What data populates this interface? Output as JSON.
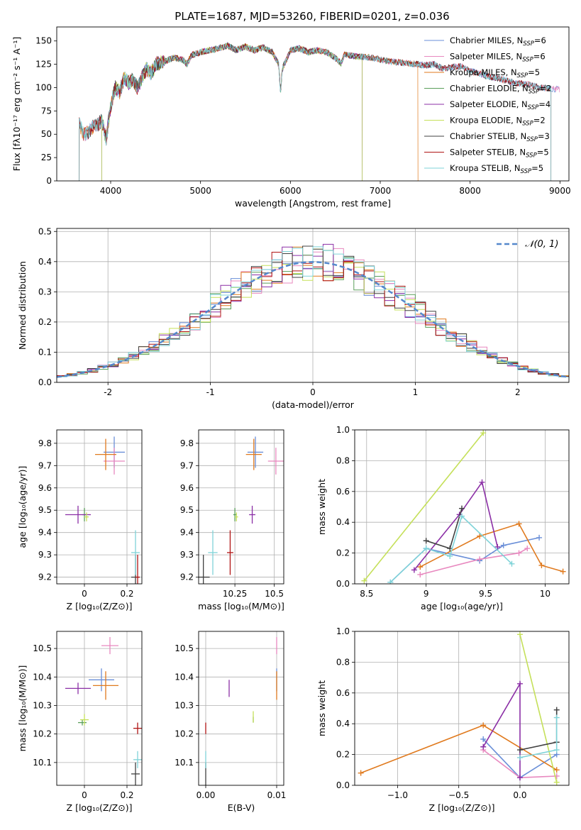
{
  "figure": {
    "title": "PLATE=1687, MJD=53260, FIBERID=0201, z=0.036"
  },
  "series_styles": [
    {
      "name": "Chabrier MILES",
      "nssp": "6",
      "color": "#6a8fd8"
    },
    {
      "name": "Salpeter MILES",
      "nssp": "6",
      "color": "#e888bf"
    },
    {
      "name": "Kroupa MILES",
      "nssp": "5",
      "color": "#e07a1e"
    },
    {
      "name": "Chabrier ELODIE",
      "nssp": "2",
      "color": "#5a9e5a"
    },
    {
      "name": "Salpeter ELODIE",
      "nssp": "4",
      "color": "#8b2fa6"
    },
    {
      "name": "Kroupa ELODIE",
      "nssp": "2",
      "color": "#c5e05a"
    },
    {
      "name": "Chabrier STELIB",
      "nssp": "3",
      "color": "#404040"
    },
    {
      "name": "Salpeter STELIB",
      "nssp": "5",
      "color": "#b01414"
    },
    {
      "name": "Kroupa STELIB",
      "nssp": "5",
      "color": "#7fd3d8"
    }
  ],
  "chart_data": [
    {
      "id": "spectrum",
      "type": "line",
      "xlabel": "wavelength [Angstrom, rest frame]",
      "ylabel": "Flux [fλ10⁻¹⁷ erg cm⁻² s⁻¹ A⁻¹]",
      "xlim": [
        3400,
        9100
      ],
      "ylim": [
        0,
        165
      ],
      "xticks": [
        4000,
        5000,
        6000,
        7000,
        8000,
        9000
      ],
      "yticks": [
        0,
        25,
        50,
        75,
        100,
        125,
        150
      ],
      "grid": false,
      "legend": "top-right",
      "spectrum_x": [
        3650,
        3680,
        3700,
        3750,
        3800,
        3850,
        3900,
        3950,
        4000,
        4050,
        4100,
        4150,
        4200,
        4250,
        4300,
        4350,
        4400,
        4450,
        4500,
        4600,
        4700,
        4800,
        4850,
        4900,
        5000,
        5100,
        5200,
        5300,
        5400,
        5500,
        5600,
        5700,
        5800,
        5870,
        5890,
        5910,
        6000,
        6100,
        6200,
        6300,
        6400,
        6500,
        6563,
        6600,
        6700,
        6800,
        6900,
        7000,
        7100,
        7200,
        7300,
        7400,
        7500,
        7600,
        7700,
        7800,
        7900,
        8000,
        8100,
        8200,
        8300,
        8400,
        8500,
        8600,
        8700,
        8800,
        8900,
        9000
      ],
      "spectrum_y": [
        62,
        55,
        50,
        52,
        58,
        60,
        65,
        45,
        80,
        100,
        95,
        110,
        105,
        108,
        100,
        112,
        120,
        115,
        125,
        128,
        132,
        130,
        125,
        135,
        138,
        140,
        142,
        145,
        140,
        144,
        140,
        143,
        138,
        125,
        95,
        120,
        140,
        142,
        138,
        140,
        138,
        132,
        126,
        135,
        134,
        133,
        132,
        130,
        128,
        127,
        126,
        125,
        124,
        125,
        120,
        122,
        123,
        118,
        115,
        112,
        110,
        108,
        105,
        104,
        102,
        100,
        99,
        98
      ],
      "cutoffs": [
        {
          "series": "Chabrier MILES",
          "x": [
            3650,
            9000
          ]
        },
        {
          "series": "Salpeter MILES",
          "x": [
            3650,
            9000
          ]
        },
        {
          "series": "Kroupa MILES",
          "x": [
            3650,
            7420
          ]
        },
        {
          "series": "Chabrier ELODIE",
          "x": [
            3900,
            6800
          ]
        },
        {
          "series": "Salpeter ELODIE",
          "x": [
            3900,
            6800
          ]
        },
        {
          "series": "Kroupa ELODIE",
          "x": [
            3900,
            6800
          ]
        },
        {
          "series": "Chabrier STELIB",
          "x": [
            3650,
            8900
          ]
        },
        {
          "series": "Salpeter STELIB",
          "x": [
            3650,
            8900
          ]
        },
        {
          "series": "Kroupa STELIB",
          "x": [
            3650,
            8900
          ]
        }
      ]
    },
    {
      "id": "residuals",
      "type": "area",
      "xlabel": "(data-model)/error",
      "ylabel": "Normed distribution",
      "xlim": [
        -2.5,
        2.5
      ],
      "ylim": [
        0,
        0.51
      ],
      "xticks": [
        -2,
        -1,
        0,
        1,
        2
      ],
      "yticks": [
        0.0,
        0.1,
        0.2,
        0.3,
        0.4,
        0.5
      ],
      "grid": true,
      "legend": "top-right",
      "normal_label": "𝒩(0, 1)",
      "normal_color": "#5588cc"
    },
    {
      "id": "age-vs-Z",
      "type": "scatter",
      "xlabel": "Z [log₁₀(Z/Z⊙)]",
      "ylabel": "age  [log₁₀(age/yr)]",
      "xlim": [
        -0.13,
        0.27
      ],
      "ylim": [
        9.17,
        9.86
      ],
      "xticks": [
        0.0,
        0.2
      ],
      "yticks": [
        9.2,
        9.3,
        9.4,
        9.5,
        9.6,
        9.7,
        9.8
      ],
      "grid": true,
      "points": [
        {
          "series": "Chabrier MILES",
          "x": 0.14,
          "y": 9.76,
          "xerr": 0.05,
          "yerr": 0.07
        },
        {
          "series": "Salpeter MILES",
          "x": 0.14,
          "y": 9.72,
          "xerr": 0.05,
          "yerr": 0.06
        },
        {
          "series": "Kroupa MILES",
          "x": 0.1,
          "y": 9.75,
          "xerr": 0.05,
          "yerr": 0.07
        },
        {
          "series": "Chabrier ELODIE",
          "x": 0.0,
          "y": 9.48,
          "xerr": 0.01,
          "yerr": 0.03
        },
        {
          "series": "Salpeter ELODIE",
          "x": -0.03,
          "y": 9.48,
          "xerr": 0.06,
          "yerr": 0.04
        },
        {
          "series": "Kroupa ELODIE",
          "x": 0.01,
          "y": 9.47,
          "xerr": 0.01,
          "yerr": 0.02
        },
        {
          "series": "Chabrier STELIB",
          "x": 0.24,
          "y": 9.2,
          "xerr": 0.02,
          "yerr": 0.1
        },
        {
          "series": "Salpeter STELIB",
          "x": 0.25,
          "y": 9.2,
          "xerr": 0.01,
          "yerr": 0.1
        },
        {
          "series": "Kroupa STELIB",
          "x": 0.24,
          "y": 9.31,
          "xerr": 0.02,
          "yerr": 0.1
        }
      ]
    },
    {
      "id": "age-vs-mass",
      "type": "scatter",
      "xlabel": "mass [log₁₀(M/M⊙)]",
      "ylabel": "",
      "xlim": [
        10.02,
        10.56
      ],
      "ylim": [
        9.17,
        9.86
      ],
      "xticks": [
        10.25,
        10.5
      ],
      "yticks": [
        9.2,
        9.3,
        9.4,
        9.5,
        9.6,
        9.7,
        9.8
      ],
      "grid": true,
      "points": [
        {
          "series": "Chabrier MILES",
          "x": 10.38,
          "y": 9.76,
          "xerr": 0.05,
          "yerr": 0.07
        },
        {
          "series": "Salpeter MILES",
          "x": 10.51,
          "y": 9.72,
          "xerr": 0.05,
          "yerr": 0.06
        },
        {
          "series": "Kroupa MILES",
          "x": 10.37,
          "y": 9.75,
          "xerr": 0.05,
          "yerr": 0.07
        },
        {
          "series": "Chabrier ELODIE",
          "x": 10.25,
          "y": 9.48,
          "xerr": 0.01,
          "yerr": 0.03
        },
        {
          "series": "Salpeter ELODIE",
          "x": 10.36,
          "y": 9.48,
          "xerr": 0.02,
          "yerr": 0.04
        },
        {
          "series": "Kroupa ELODIE",
          "x": 10.26,
          "y": 9.47,
          "xerr": 0.01,
          "yerr": 0.02
        },
        {
          "series": "Chabrier STELIB",
          "x": 10.05,
          "y": 9.2,
          "xerr": 0.04,
          "yerr": 0.1
        },
        {
          "series": "Salpeter STELIB",
          "x": 10.22,
          "y": 9.31,
          "xerr": 0.02,
          "yerr": 0.1
        },
        {
          "series": "Kroupa STELIB",
          "x": 10.11,
          "y": 9.31,
          "xerr": 0.03,
          "yerr": 0.1
        }
      ]
    },
    {
      "id": "weight-vs-age",
      "type": "line",
      "xlabel": "age  [log₁₀(age/yr)]",
      "ylabel": "mass weight",
      "xlim": [
        8.4,
        10.2
      ],
      "ylim": [
        0,
        1.0
      ],
      "xticks": [
        8.5,
        9.0,
        9.5,
        10.0
      ],
      "yticks": [
        0.0,
        0.2,
        0.4,
        0.6,
        0.8,
        1.0
      ],
      "grid": true,
      "series": [
        {
          "name": "Chabrier MILES",
          "x": [
            8.7,
            9.0,
            9.45,
            9.65,
            9.95
          ],
          "y": [
            0.01,
            0.23,
            0.15,
            0.25,
            0.3
          ]
        },
        {
          "name": "Salpeter MILES",
          "x": [
            8.95,
            9.45,
            9.78,
            9.85
          ],
          "y": [
            0.06,
            0.16,
            0.2,
            0.23
          ]
        },
        {
          "name": "Kroupa MILES",
          "x": [
            8.95,
            9.45,
            9.78,
            9.97,
            10.15
          ],
          "y": [
            0.11,
            0.31,
            0.39,
            0.12,
            0.08
          ]
        },
        {
          "name": "Salpeter ELODIE",
          "x": [
            8.9,
            9.28,
            9.47,
            9.6
          ],
          "y": [
            0.09,
            0.45,
            0.66,
            0.24
          ]
        },
        {
          "name": "Kroupa ELODIE",
          "x": [
            8.48,
            9.48
          ],
          "y": [
            0.02,
            0.98
          ]
        },
        {
          "name": "Chabrier STELIB",
          "x": [
            9.0,
            9.2,
            9.3
          ],
          "y": [
            0.28,
            0.23,
            0.49
          ]
        },
        {
          "name": "Kroupa STELIB",
          "x": [
            8.7,
            9.0,
            9.2,
            9.3,
            9.72
          ],
          "y": [
            0.01,
            0.23,
            0.18,
            0.44,
            0.13
          ]
        }
      ]
    },
    {
      "id": "mass-vs-Z",
      "type": "scatter",
      "xlabel": "Z [log₁₀(Z/Z⊙)]",
      "ylabel": "mass [log₁₀(M/M⊙)]",
      "xlim": [
        -0.13,
        0.27
      ],
      "ylim": [
        10.02,
        10.56
      ],
      "xticks": [
        0.0,
        0.2
      ],
      "yticks": [
        10.1,
        10.2,
        10.3,
        10.4,
        10.5
      ],
      "grid": true,
      "points": [
        {
          "series": "Chabrier MILES",
          "x": 0.08,
          "y": 10.39,
          "xerr": 0.06,
          "yerr": 0.04
        },
        {
          "series": "Salpeter MILES",
          "x": 0.12,
          "y": 10.51,
          "xerr": 0.04,
          "yerr": 0.03
        },
        {
          "series": "Kroupa MILES",
          "x": 0.1,
          "y": 10.37,
          "xerr": 0.06,
          "yerr": 0.05
        },
        {
          "series": "Chabrier ELODIE",
          "x": -0.01,
          "y": 10.24,
          "xerr": 0.02,
          "yerr": 0.01
        },
        {
          "series": "Salpeter ELODIE",
          "x": -0.03,
          "y": 10.36,
          "xerr": 0.06,
          "yerr": 0.02
        },
        {
          "series": "Kroupa ELODIE",
          "x": 0.0,
          "y": 10.25,
          "xerr": 0.02,
          "yerr": 0.02
        },
        {
          "series": "Chabrier STELIB",
          "x": 0.24,
          "y": 10.06,
          "xerr": 0.02,
          "yerr": 0.04
        },
        {
          "series": "Salpeter STELIB",
          "x": 0.25,
          "y": 10.22,
          "xerr": 0.02,
          "yerr": 0.02
        },
        {
          "series": "Kroupa STELIB",
          "x": 0.25,
          "y": 10.11,
          "xerr": 0.02,
          "yerr": 0.03
        }
      ]
    },
    {
      "id": "mass-vs-ebv",
      "type": "scatter",
      "xlabel": "E(B-V)",
      "ylabel": "",
      "xlim": [
        -0.001,
        0.011
      ],
      "ylim": [
        10.02,
        10.56
      ],
      "xticks": [
        0.0,
        0.01
      ],
      "xticklabels": [
        "0.00",
        "0.01"
      ],
      "yticks": [
        10.1,
        10.2,
        10.3,
        10.4,
        10.5
      ],
      "grid": true,
      "points": [
        {
          "series": "Chabrier MILES",
          "x": 0.01,
          "y": 10.39,
          "xerr": 0.0,
          "yerr": 0.04
        },
        {
          "series": "Salpeter MILES",
          "x": 0.01,
          "y": 10.51,
          "xerr": 0.0,
          "yerr": 0.03
        },
        {
          "series": "Kroupa MILES",
          "x": 0.01,
          "y": 10.37,
          "xerr": 0.0,
          "yerr": 0.05
        },
        {
          "series": "Chabrier ELODIE",
          "x": 0.0067,
          "y": 10.25,
          "xerr": 0.0,
          "yerr": 0.01
        },
        {
          "series": "Salpeter ELODIE",
          "x": 0.0033,
          "y": 10.36,
          "xerr": 0.0,
          "yerr": 0.03
        },
        {
          "series": "Kroupa ELODIE",
          "x": 0.0067,
          "y": 10.26,
          "xerr": 0.0,
          "yerr": 0.02
        },
        {
          "series": "Chabrier STELIB",
          "x": 0.0,
          "y": 10.06,
          "xerr": 0.0,
          "yerr": 0.04
        },
        {
          "series": "Salpeter STELIB",
          "x": 0.0,
          "y": 10.22,
          "xerr": 0.0,
          "yerr": 0.02
        },
        {
          "series": "Kroupa STELIB",
          "x": 0.0,
          "y": 10.11,
          "xerr": 0.0,
          "yerr": 0.03
        }
      ]
    },
    {
      "id": "weight-vs-Z",
      "type": "line",
      "xlabel": "Z [log₁₀(Z/Z⊙)]",
      "ylabel": "mass weight",
      "xlim": [
        -1.35,
        0.4
      ],
      "ylim": [
        0,
        1.0
      ],
      "xticks": [
        -1.0,
        -0.5,
        0.0
      ],
      "xticklabels": [
        "−1.0",
        "−0.5",
        "0.0"
      ],
      "yticks": [
        0.0,
        0.2,
        0.4,
        0.6,
        0.8,
        1.0
      ],
      "grid": true,
      "series": [
        {
          "name": "Chabrier MILES",
          "x": [
            -0.3,
            0.0,
            0.3
          ],
          "y": [
            0.3,
            0.05,
            0.2
          ]
        },
        {
          "name": "Salpeter MILES",
          "x": [
            -0.3,
            0.0,
            0.3
          ],
          "y": [
            0.23,
            0.05,
            0.06
          ]
        },
        {
          "name": "Kroupa MILES",
          "x": [
            -1.3,
            -0.3,
            0.3
          ],
          "y": [
            0.08,
            0.39,
            0.1
          ]
        },
        {
          "name": "Salpeter ELODIE",
          "x": [
            -0.3,
            0.0,
            0.0
          ],
          "y": [
            0.25,
            0.66,
            0.05
          ]
        },
        {
          "name": "Kroupa ELODIE",
          "x": [
            0.0,
            0.3
          ],
          "y": [
            0.98,
            0.02
          ]
        },
        {
          "name": "Chabrier STELIB",
          "x": [
            0.0,
            0.3,
            0.3
          ],
          "y": [
            0.23,
            0.28,
            0.49
          ]
        },
        {
          "name": "Kroupa STELIB",
          "x": [
            0.0,
            0.3,
            0.3
          ],
          "y": [
            0.18,
            0.23,
            0.44
          ]
        }
      ]
    }
  ]
}
